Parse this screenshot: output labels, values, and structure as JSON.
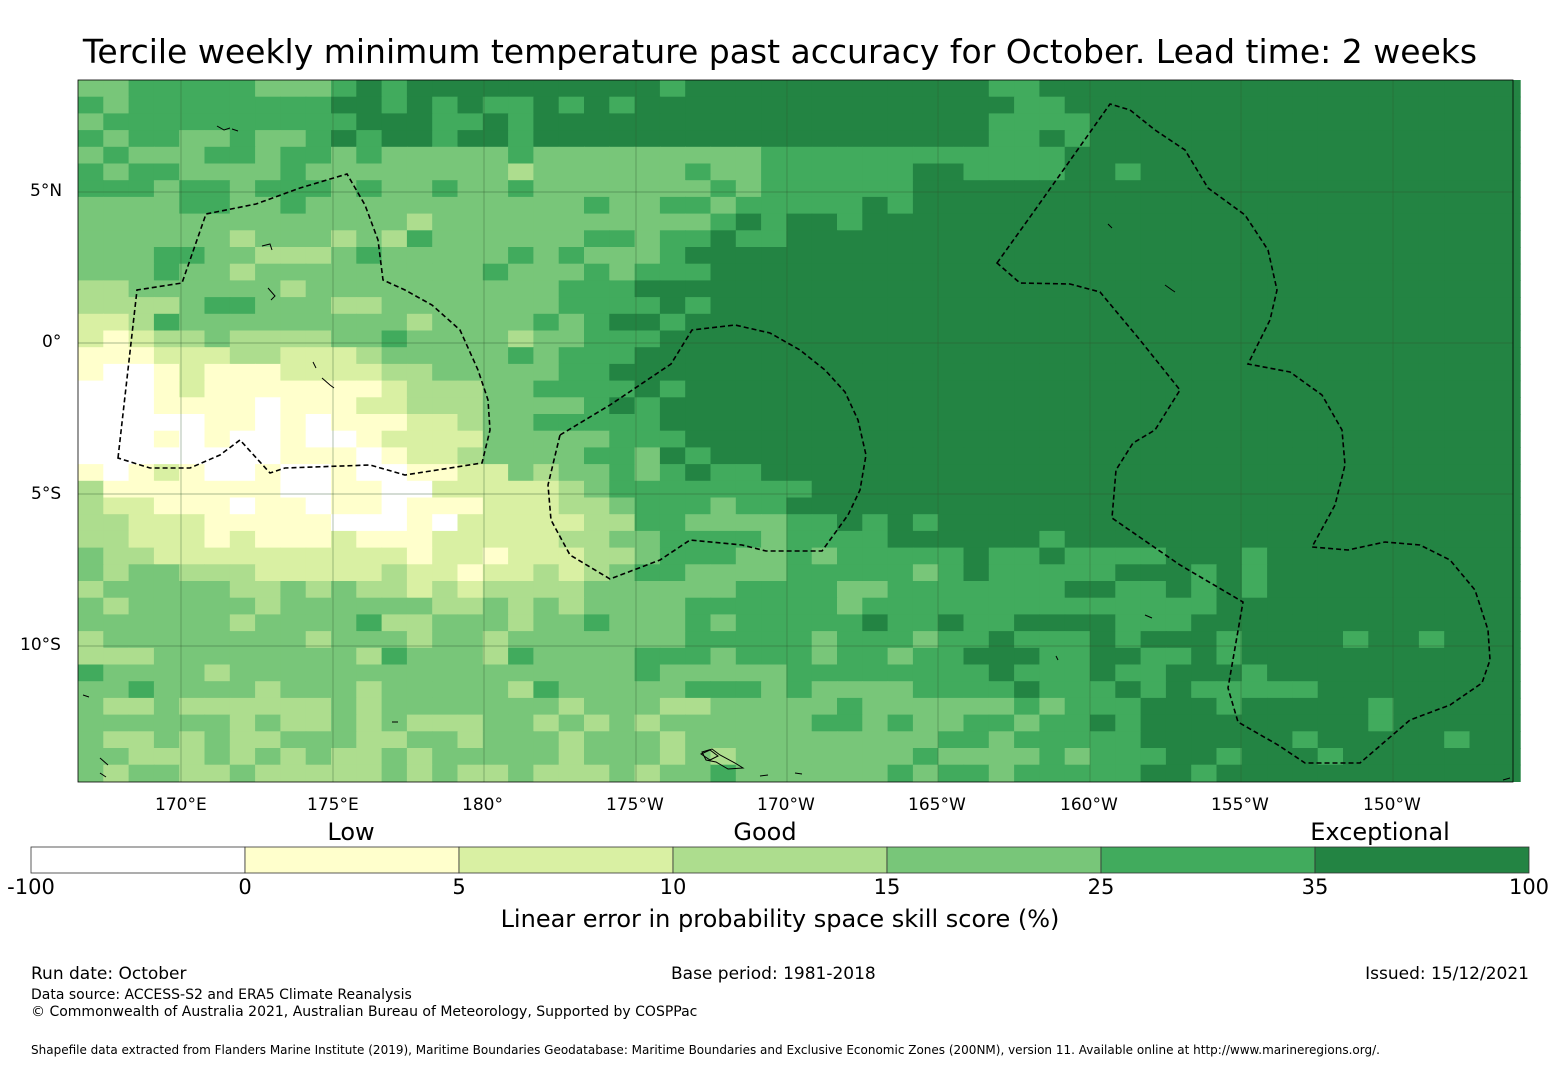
{
  "title": "Tercile weekly minimum temperature past accuracy for October. Lead time: 2 weeks",
  "lat_labels": [
    "5°N",
    "0°",
    "5°S",
    "10°S"
  ],
  "lon_labels": [
    "170°E",
    "175°E",
    "180°",
    "175°W",
    "170°W",
    "165°W",
    "160°W",
    "155°W",
    "150°W"
  ],
  "colorbar": {
    "qualitative": [
      "Low",
      "Good",
      "Exceptional"
    ],
    "ticks": [
      "-100",
      "0",
      "5",
      "10",
      "15",
      "25",
      "35",
      "100"
    ],
    "colors": [
      "#ffffff",
      "#ffffcc",
      "#d9f0a3",
      "#addd8e",
      "#78c679",
      "#41ab5d",
      "#238443"
    ],
    "label": "Linear error in probability space skill score (%)"
  },
  "map": {
    "lon_range": [
      166.6,
      213.9
    ],
    "lat_range": [
      -14.4,
      8.6
    ]
  },
  "footer": {
    "run_date": "Run date: October",
    "base_period": "Base period: 1981-2018",
    "issued": "Issued: 15/12/2021",
    "data_source": "Data source: ACCESS-S2 and ERA5 Climate Reanalysis",
    "copyright": "© Commonwealth of Australia 2021, Australian Bureau of Meteorology, Supported by COSPPac",
    "shapefile": "Shapefile data extracted from Flanders Marine Institute (2019), Maritime Boundaries Geodatabase: Maritime Boundaries and Exclusive Economic Zones (200NM), version 11. Available online at http://www.marineregions.org/."
  }
}
